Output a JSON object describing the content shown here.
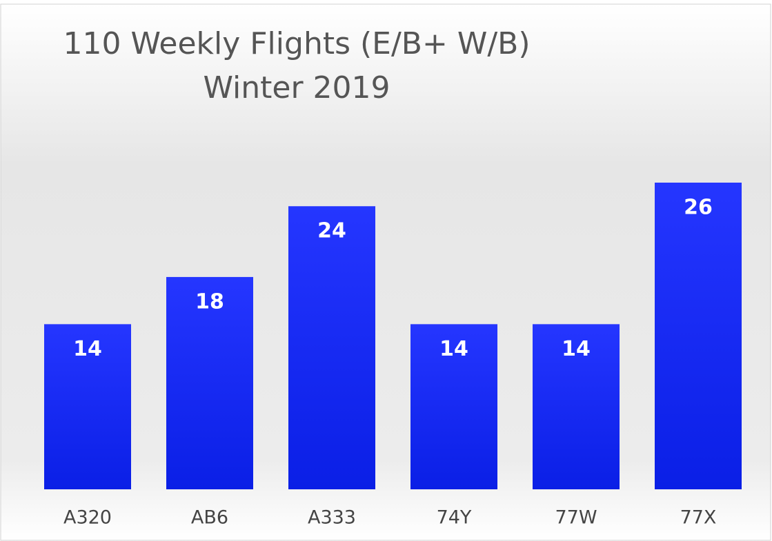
{
  "chart_data": {
    "type": "bar",
    "title": "110 Weekly Flights (E/B+ W/B)",
    "subtitle": "Winter 2019",
    "categories": [
      "A320",
      "AB6",
      "A333",
      "74Y",
      "77W",
      "77X"
    ],
    "values": [
      14,
      18,
      24,
      14,
      14,
      26
    ],
    "color": "#1e2eff"
  }
}
